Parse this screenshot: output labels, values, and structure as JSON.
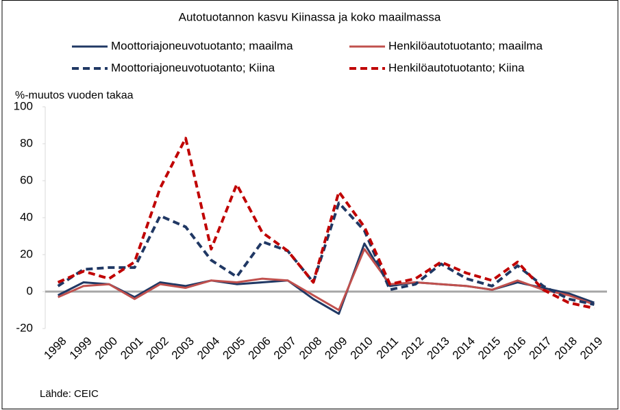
{
  "chart_data": {
    "type": "line",
    "title": "Autotuotannon kasvu Kiinassa ja koko maailmassa",
    "y_label": "%-muutos vuoden takaa",
    "source": "Lähde: CEIC",
    "categories": [
      "1998",
      "1999",
      "2000",
      "2001",
      "2002",
      "2003",
      "2004",
      "2005",
      "2006",
      "2007",
      "2008",
      "2009",
      "2010",
      "2011",
      "2012",
      "2013",
      "2014",
      "2015",
      "2016",
      "2017",
      "2018",
      "2019"
    ],
    "series": [
      {
        "name": "Moottoriajoneuvotuotanto; maailma",
        "color": "#203864",
        "dashed": false,
        "values": [
          -2,
          5,
          4,
          -3,
          5,
          3,
          6,
          4,
          5,
          6,
          -4,
          -12,
          26,
          3,
          5,
          4,
          3,
          1,
          5,
          2,
          -1,
          -6
        ]
      },
      {
        "name": "Henkilöautotuotanto; maailma",
        "color": "#c0504d",
        "dashed": false,
        "values": [
          -3,
          3,
          4,
          -4,
          4,
          2,
          6,
          5,
          7,
          6,
          -2,
          -10,
          23,
          4,
          5,
          4,
          3,
          1,
          6,
          1,
          -2,
          -7
        ]
      },
      {
        "name": "Moottoriajoneuvotuotanto; Kiina",
        "color": "#203864",
        "dashed": true,
        "values": [
          3,
          12,
          13,
          13,
          41,
          35,
          17,
          8,
          27,
          22,
          5,
          48,
          33,
          1,
          4,
          15,
          7,
          3,
          14,
          3,
          -4,
          -7
        ]
      },
      {
        "name": "Henkilöautotuotanto; Kiina",
        "color": "#c00000",
        "dashed": true,
        "values": [
          5,
          11,
          7,
          16,
          56,
          83,
          23,
          58,
          32,
          22,
          5,
          54,
          35,
          4,
          7,
          16,
          10,
          6,
          16,
          1,
          -6,
          -9
        ]
      }
    ],
    "ylim": [
      -20,
      100
    ],
    "yticks": [
      -20,
      0,
      20,
      40,
      60,
      80,
      100
    ],
    "zero_line": true
  }
}
